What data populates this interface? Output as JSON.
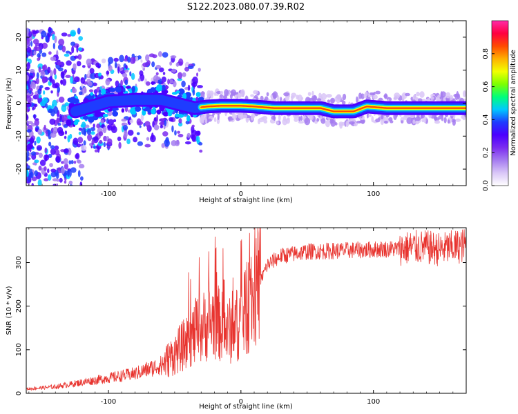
{
  "title": "S122.2023.080.07.39.R02",
  "colors": {
    "axis": "#000000",
    "snr_line": "#e8342f",
    "colormap": [
      "#ffffff",
      "#d9c6f7",
      "#a57cf0",
      "#7b2cf0",
      "#4b00ff",
      "#1e3cff",
      "#00c8ff",
      "#00ff7a",
      "#7dff00",
      "#f2ff00",
      "#ffb000",
      "#ff4a00",
      "#ff0040",
      "#ff2aa8"
    ]
  },
  "chart_data": [
    {
      "type": "heatmap",
      "xlabel": "Height of straight line (km)",
      "ylabel": "Frequency (Hz)",
      "xlim": [
        -162,
        170
      ],
      "ylim": [
        -25,
        25
      ],
      "xticks": [
        -100,
        0,
        100
      ],
      "yticks": [
        -20,
        -10,
        0,
        10,
        20
      ],
      "colorbar": {
        "label": "Normalized spectral amplitude",
        "range": [
          0.0,
          1.0
        ],
        "ticks": [
          "0.0",
          "0.2",
          "0.4",
          "0.6",
          "0.8"
        ]
      },
      "ridge_line": {
        "description_values": [
          [
            -125,
            -2.5
          ],
          [
            -100,
            0.5
          ],
          [
            -80,
            1.0
          ],
          [
            -60,
            1.0
          ],
          [
            -45,
            -0.5
          ],
          [
            -35,
            -1.5
          ],
          [
            -25,
            -1.0
          ],
          [
            -15,
            -0.8
          ],
          [
            0,
            -0.8
          ],
          [
            10,
            -1.0
          ],
          [
            25,
            -1.5
          ],
          [
            50,
            -1.5
          ],
          [
            60,
            -1.5
          ],
          [
            70,
            -2.5
          ],
          [
            85,
            -2.5
          ],
          [
            95,
            -1.0
          ],
          [
            110,
            -1.5
          ],
          [
            140,
            -1.5
          ],
          [
            170,
            -1.5
          ]
        ]
      }
    },
    {
      "type": "line",
      "xlabel": "Height of straight line (km)",
      "ylabel": "SNR (10 * v/v)",
      "xlim": [
        -162,
        170
      ],
      "ylim": [
        0,
        380
      ],
      "xticks": [
        -100,
        0,
        100
      ],
      "yticks": [
        0,
        100,
        200,
        300
      ],
      "series": [
        {
          "envelope": [
            [
              -162,
              10
            ],
            [
              -140,
              15
            ],
            [
              -120,
              25
            ],
            [
              -100,
              35
            ],
            [
              -80,
              45
            ],
            [
              -60,
              65
            ],
            [
              -50,
              90
            ],
            [
              -40,
              120
            ],
            [
              -30,
              150
            ],
            [
              -20,
              170
            ],
            [
              -10,
              140
            ],
            [
              -5,
              150
            ],
            [
              0,
              170
            ],
            [
              5,
              190
            ],
            [
              10,
              220
            ],
            [
              15,
              260
            ],
            [
              20,
              295
            ],
            [
              30,
              315
            ],
            [
              50,
              325
            ],
            [
              80,
              328
            ],
            [
              100,
              330
            ],
            [
              120,
              332
            ],
            [
              130,
              335
            ],
            [
              140,
              335
            ],
            [
              150,
              330
            ],
            [
              170,
              340
            ]
          ]
        }
      ]
    }
  ]
}
